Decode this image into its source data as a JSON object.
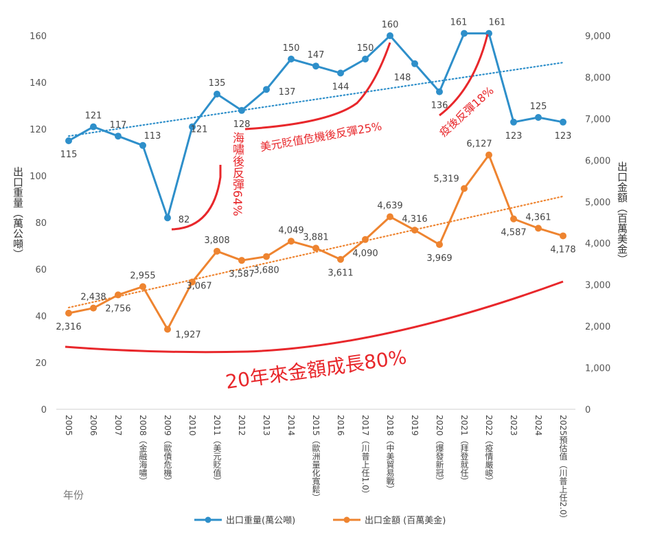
{
  "chart_data": {
    "type": "line",
    "categories": [
      "2005",
      "2006",
      "2007",
      "2008（金融海嘯）",
      "2009（歐債危機）",
      "2010",
      "2011（美元貶值）",
      "2012",
      "2013",
      "2014",
      "2015（歐洲量化寬鬆）",
      "2016",
      "2017（川普上任1.0）",
      "2018（中美貿易戰）",
      "2019",
      "2020（爆發新冠）",
      "2021（拜登就任）",
      "2022（疫情嚴峻）",
      "2023",
      "2024",
      "2025預估值（川普上任2.0）"
    ],
    "xlabel": "年份",
    "y_left": {
      "label": "出口重量（萬公噸）",
      "range": [
        0,
        160
      ],
      "ticks": [
        0,
        20,
        40,
        60,
        80,
        100,
        120,
        140,
        160
      ],
      "axis_max": 170
    },
    "y_right": {
      "label": "出口金額（百萬美金）",
      "range": [
        0,
        9000
      ],
      "ticks": [
        "0",
        "1,000",
        "2,000",
        "3,000",
        "4,000",
        "5,000",
        "6,000",
        "7,000",
        "8,000",
        "9,000"
      ],
      "tick_values": [
        0,
        1000,
        2000,
        3000,
        4000,
        5000,
        6000,
        7000,
        8000,
        9000
      ],
      "axis_max": 9562.5
    },
    "series": [
      {
        "name": "出口重量(萬公噸)",
        "axis": "left",
        "color": "#2e8fca",
        "values": [
          115,
          121,
          117,
          113,
          82,
          121,
          135,
          128,
          137,
          150,
          147,
          144,
          150,
          160,
          148,
          136,
          161,
          161,
          123,
          125,
          123
        ],
        "labels": [
          "115",
          "121",
          "117",
          "113",
          "82",
          "121",
          "135",
          "128",
          "137",
          "150",
          "147",
          "144",
          "150",
          "160",
          "148",
          "136",
          "161",
          "161",
          "123",
          "125",
          "123"
        ]
      },
      {
        "name": "出口金額 (百萬美金)",
        "axis": "right",
        "color": "#ee8430",
        "values": [
          2316,
          2438,
          2756,
          2955,
          1927,
          3067,
          3808,
          3587,
          3680,
          4049,
          3881,
          3611,
          4090,
          4639,
          4316,
          3969,
          5319,
          6127,
          4587,
          4361,
          4178
        ],
        "labels": [
          "2,316",
          "2,438",
          "2,756",
          "2,955",
          "1,927",
          "3,067",
          "3,808",
          "3,587",
          "3,680",
          "4,049",
          "3,881",
          "3,611",
          "4,090",
          "4,639",
          "4,316",
          "3,969",
          "5,319",
          "6,127",
          "4,587",
          "4,361",
          "4,178"
        ]
      }
    ],
    "trendlines": [
      {
        "series": "出口重量(萬公噸)",
        "style": "dotted",
        "from": 117,
        "to": 148.5
      },
      {
        "series": "出口金額 (百萬美金)",
        "style": "dotted",
        "from": 2450,
        "to": 5130
      }
    ],
    "annotations": [
      {
        "text": "海嘯後反彈64%"
      },
      {
        "text": "美元貶值危機後反彈25%"
      },
      {
        "text": "疫後反彈18%"
      },
      {
        "text": "20年來金額成長80%"
      }
    ],
    "legend_position": "bottom",
    "grid": false
  },
  "colors": {
    "weight": "#2e8fca",
    "amount": "#ee8430",
    "annotation": "#e8272b"
  }
}
